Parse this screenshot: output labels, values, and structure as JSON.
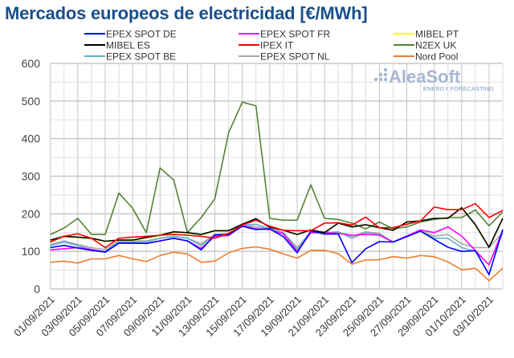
{
  "chart_data": {
    "type": "line",
    "title": "Mercados europeos de electricidad [€/MWh]",
    "watermark": {
      "brand": "AleaSoft",
      "tagline": "ENERGY FORECASTING"
    },
    "ylim": [
      0,
      600
    ],
    "yticks": [
      0,
      100,
      200,
      300,
      400,
      500,
      600
    ],
    "grid": true,
    "legend_position": "top",
    "x": [
      "01/09/2021",
      "02/09/2021",
      "03/09/2021",
      "04/09/2021",
      "05/09/2021",
      "06/09/2021",
      "07/09/2021",
      "08/09/2021",
      "09/09/2021",
      "10/09/2021",
      "11/09/2021",
      "12/09/2021",
      "13/09/2021",
      "14/09/2021",
      "15/09/2021",
      "16/09/2021",
      "17/09/2021",
      "18/09/2021",
      "19/09/2021",
      "20/09/2021",
      "21/09/2021",
      "22/09/2021",
      "23/09/2021",
      "24/09/2021",
      "25/09/2021",
      "26/09/2021",
      "27/09/2021",
      "28/09/2021",
      "29/09/2021",
      "30/09/2021",
      "01/10/2021",
      "02/10/2021",
      "03/10/2021",
      "04/10/2021"
    ],
    "xtick_labels": [
      "01/09/2021",
      "03/09/2021",
      "05/09/2021",
      "07/09/2021",
      "09/09/2021",
      "11/09/2021",
      "13/09/2021",
      "15/09/2021",
      "17/09/2021",
      "19/09/2021",
      "21/09/2021",
      "23/09/2021",
      "25/09/2021",
      "27/09/2021",
      "29/09/2021",
      "01/10/2021",
      "03/10/2021"
    ],
    "series": [
      {
        "name": "N2EX UK",
        "color": "#548235",
        "values": [
          145,
          162,
          188,
          145,
          145,
          255,
          215,
          150,
          322,
          290,
          150,
          190,
          240,
          415,
          497,
          487,
          188,
          183,
          183,
          277,
          188,
          185,
          175,
          160,
          178,
          160,
          165,
          178,
          185,
          190,
          190,
          210,
          168,
          205
        ]
      },
      {
        "name": "Nord Pool",
        "color": "#ed7d31",
        "values": [
          71,
          74,
          69,
          80,
          80,
          89,
          80,
          73,
          89,
          98,
          93,
          71,
          74,
          96,
          108,
          112,
          106,
          93,
          82,
          103,
          103,
          94,
          66,
          77,
          78,
          86,
          82,
          89,
          86,
          72,
          51,
          55,
          22,
          55
        ]
      },
      {
        "name": "EPEX SPOT NL",
        "color": "#a6a6a6",
        "values": [
          118,
          128,
          118,
          110,
          105,
          128,
          128,
          128,
          135,
          140,
          135,
          120,
          145,
          148,
          170,
          165,
          160,
          150,
          110,
          152,
          152,
          150,
          140,
          152,
          148,
          125,
          140,
          155,
          140,
          145,
          120,
          110,
          110,
          150
        ]
      },
      {
        "name": "EPEX SPOT BE",
        "color": "#5fb3c9",
        "values": [
          115,
          125,
          115,
          105,
          100,
          125,
          125,
          125,
          135,
          140,
          135,
          115,
          145,
          145,
          170,
          172,
          160,
          150,
          105,
          150,
          150,
          152,
          135,
          150,
          145,
          125,
          140,
          155,
          135,
          135,
          110,
          100,
          65,
          150
        ]
      },
      {
        "name": "EPEX SPOT FR",
        "color": "#ff00ff",
        "values": [
          104,
          107,
          110,
          105,
          98,
          122,
          122,
          121,
          128,
          135,
          128,
          108,
          140,
          142,
          168,
          160,
          158,
          147,
          100,
          150,
          150,
          148,
          143,
          145,
          143,
          125,
          141,
          157,
          150,
          165,
          141,
          102,
          64,
          157
        ]
      },
      {
        "name": "EPEX SPOT DE",
        "color": "#0000ff",
        "values": [
          110,
          116,
          109,
          103,
          98,
          122,
          122,
          121,
          128,
          135,
          128,
          104,
          144,
          144,
          167,
          158,
          160,
          139,
          96,
          154,
          146,
          146,
          70,
          107,
          126,
          125,
          139,
          154,
          132,
          111,
          100,
          102,
          38,
          158
        ]
      },
      {
        "name": "MIBEL PT",
        "color": "#ffff00",
        "values": [
          129,
          139,
          137,
          134,
          126,
          129,
          129,
          136,
          142,
          151,
          149,
          144,
          154,
          154,
          171,
          186,
          164,
          156,
          145,
          157,
          150,
          175,
          165,
          171,
          163,
          156,
          178,
          181,
          188,
          188,
          216,
          171,
          111,
          188
        ]
      },
      {
        "name": "MIBEL ES",
        "color": "#000000",
        "values": [
          130,
          140,
          138,
          135,
          127,
          130,
          130,
          137,
          143,
          152,
          150,
          145,
          155,
          155,
          172,
          187,
          164,
          156,
          145,
          157,
          150,
          175,
          165,
          171,
          163,
          156,
          178,
          181,
          188,
          188,
          216,
          171,
          111,
          188
        ]
      },
      {
        "name": "IPEX IT",
        "color": "#ff0000",
        "values": [
          125,
          140,
          147,
          135,
          110,
          135,
          138,
          140,
          143,
          145,
          143,
          140,
          135,
          148,
          170,
          183,
          167,
          156,
          155,
          155,
          175,
          176,
          170,
          191,
          163,
          163,
          172,
          181,
          218,
          211,
          211,
          227,
          190,
          209
        ]
      }
    ],
    "legend": [
      "EPEX SPOT DE",
      "EPEX SPOT FR",
      "MIBEL PT",
      "MIBEL ES",
      "IPEX IT",
      "N2EX UK",
      "EPEX SPOT BE",
      "EPEX SPOT NL",
      "Nord Pool"
    ]
  }
}
